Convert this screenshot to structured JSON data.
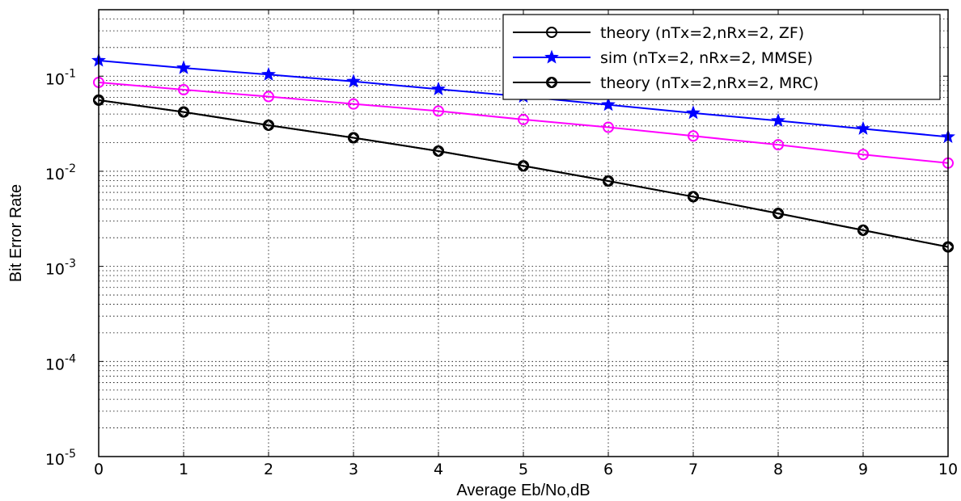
{
  "chart_data": {
    "type": "line",
    "title": "",
    "xlabel": "Average Eb/No,dB",
    "ylabel": "Bit Error Rate",
    "xlim": [
      0,
      10
    ],
    "ylim": [
      1e-05,
      0.5
    ],
    "yscale": "log",
    "grid": true,
    "legend_position": "top-right",
    "x": [
      0,
      1,
      2,
      3,
      4,
      5,
      6,
      7,
      8,
      9,
      10
    ],
    "x_ticks": [
      "0",
      "1",
      "2",
      "3",
      "4",
      "5",
      "6",
      "7",
      "8",
      "9",
      "10"
    ],
    "y_ticks": [
      {
        "base": "10",
        "exp": "-5",
        "value": 1e-05
      },
      {
        "base": "10",
        "exp": "-4",
        "value": 0.0001
      },
      {
        "base": "10",
        "exp": "-3",
        "value": 0.001
      },
      {
        "base": "10",
        "exp": "-2",
        "value": 0.01
      },
      {
        "base": "10",
        "exp": "-1",
        "value": 0.1
      }
    ],
    "series": [
      {
        "name": "theory (nTx=2,nRx=2, ZF)",
        "color": "#000000",
        "marker": "circle",
        "values": [
          0.056,
          0.042,
          0.0305,
          0.0225,
          0.0163,
          0.0114,
          0.0079,
          0.0054,
          0.0036,
          0.0024,
          0.0016
        ]
      },
      {
        "name": "sim (nTx=2, nRx=2, MMSE)",
        "color": "#0000ff",
        "marker": "star",
        "values": [
          0.146,
          0.122,
          0.104,
          0.088,
          0.073,
          0.061,
          0.05,
          0.041,
          0.034,
          0.028,
          0.023
        ]
      },
      {
        "name": "theory (nTx=2,nRx=2, MRC)",
        "color": "#000000",
        "marker": "diamond-circle",
        "values": [
          0.056,
          0.042,
          0.0305,
          0.0225,
          0.0163,
          0.0114,
          0.0079,
          0.0054,
          0.0036,
          0.0024,
          0.0016
        ]
      },
      {
        "name": "",
        "color": "#ff00ff",
        "marker": "circle",
        "values": [
          0.086,
          0.072,
          0.061,
          0.051,
          0.043,
          0.035,
          0.029,
          0.0235,
          0.019,
          0.015,
          0.0122
        ]
      }
    ]
  }
}
